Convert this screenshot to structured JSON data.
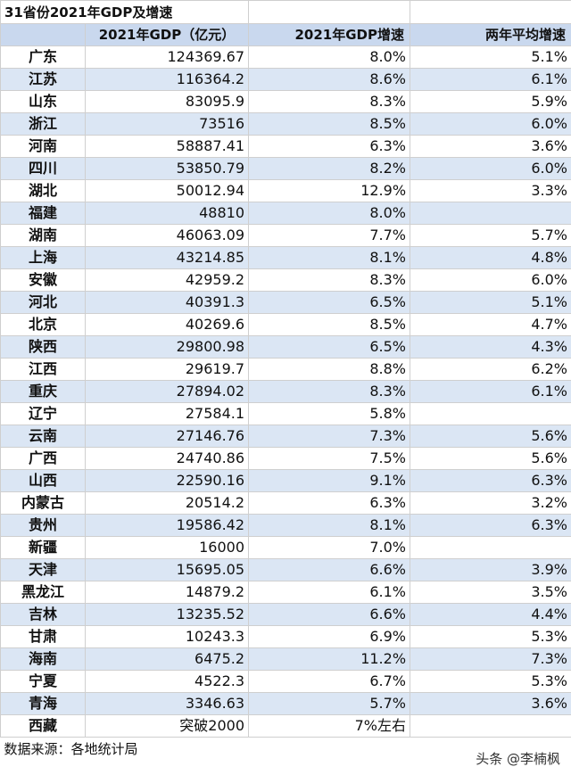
{
  "title": "31省份2021年GDP及增速",
  "headers": {
    "gdp": "2021年GDP（亿元）",
    "growth": "2021年GDP增速",
    "avg": "两年平均增速"
  },
  "rows": [
    {
      "province": "广东",
      "gdp": "124369.67",
      "growth": "8.0%",
      "avg": "5.1%"
    },
    {
      "province": "江苏",
      "gdp": "116364.2",
      "growth": "8.6%",
      "avg": "6.1%"
    },
    {
      "province": "山东",
      "gdp": "83095.9",
      "growth": "8.3%",
      "avg": "5.9%"
    },
    {
      "province": "浙江",
      "gdp": "73516",
      "growth": "8.5%",
      "avg": "6.0%"
    },
    {
      "province": "河南",
      "gdp": "58887.41",
      "growth": "6.3%",
      "avg": "3.6%"
    },
    {
      "province": "四川",
      "gdp": "53850.79",
      "growth": "8.2%",
      "avg": "6.0%"
    },
    {
      "province": "湖北",
      "gdp": "50012.94",
      "growth": "12.9%",
      "avg": "3.3%"
    },
    {
      "province": "福建",
      "gdp": "48810",
      "growth": "8.0%",
      "avg": ""
    },
    {
      "province": "湖南",
      "gdp": "46063.09",
      "growth": "7.7%",
      "avg": "5.7%"
    },
    {
      "province": "上海",
      "gdp": "43214.85",
      "growth": "8.1%",
      "avg": "4.8%"
    },
    {
      "province": "安徽",
      "gdp": "42959.2",
      "growth": "8.3%",
      "avg": "6.0%"
    },
    {
      "province": "河北",
      "gdp": "40391.3",
      "growth": "6.5%",
      "avg": "5.1%"
    },
    {
      "province": "北京",
      "gdp": "40269.6",
      "growth": "8.5%",
      "avg": "4.7%"
    },
    {
      "province": "陕西",
      "gdp": "29800.98",
      "growth": "6.5%",
      "avg": "4.3%"
    },
    {
      "province": "江西",
      "gdp": "29619.7",
      "growth": "8.8%",
      "avg": "6.2%"
    },
    {
      "province": "重庆",
      "gdp": "27894.02",
      "growth": "8.3%",
      "avg": "6.1%"
    },
    {
      "province": "辽宁",
      "gdp": "27584.1",
      "growth": "5.8%",
      "avg": ""
    },
    {
      "province": "云南",
      "gdp": "27146.76",
      "growth": "7.3%",
      "avg": "5.6%"
    },
    {
      "province": "广西",
      "gdp": "24740.86",
      "growth": "7.5%",
      "avg": "5.6%"
    },
    {
      "province": "山西",
      "gdp": "22590.16",
      "growth": "9.1%",
      "avg": "6.3%"
    },
    {
      "province": "内蒙古",
      "gdp": "20514.2",
      "growth": "6.3%",
      "avg": "3.2%"
    },
    {
      "province": "贵州",
      "gdp": "19586.42",
      "growth": "8.1%",
      "avg": "6.3%"
    },
    {
      "province": "新疆",
      "gdp": "16000",
      "growth": "7.0%",
      "avg": ""
    },
    {
      "province": "天津",
      "gdp": "15695.05",
      "growth": "6.6%",
      "avg": "3.9%"
    },
    {
      "province": "黑龙江",
      "gdp": "14879.2",
      "growth": "6.1%",
      "avg": "3.5%"
    },
    {
      "province": "吉林",
      "gdp": "13235.52",
      "growth": "6.6%",
      "avg": "4.4%"
    },
    {
      "province": "甘肃",
      "gdp": "10243.3",
      "growth": "6.9%",
      "avg": "5.3%"
    },
    {
      "province": "海南",
      "gdp": "6475.2",
      "growth": "11.2%",
      "avg": "7.3%"
    },
    {
      "province": "宁夏",
      "gdp": "4522.3",
      "growth": "6.7%",
      "avg": "5.3%"
    },
    {
      "province": "青海",
      "gdp": "3346.63",
      "growth": "5.7%",
      "avg": "3.6%"
    },
    {
      "province": "西藏",
      "gdp": "突破2000",
      "growth": "7%左右",
      "avg": ""
    }
  ],
  "source": "数据来源：各地统计局",
  "watermark": "头条 @李楠枫",
  "colors": {
    "header_bg": "#c9d8ee",
    "stripe_bg": "#dbe6f4",
    "row_bg": "#ffffff"
  }
}
